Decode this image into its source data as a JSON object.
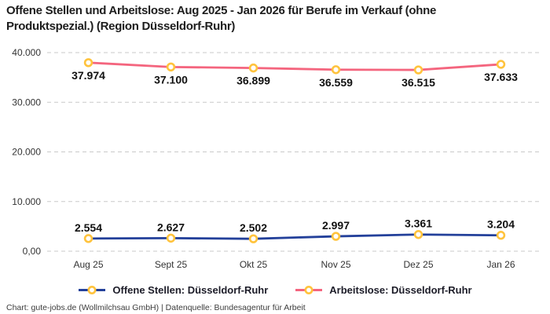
{
  "title": "Offene Stellen und Arbeitslose: Aug 2025 - Jan 2026 für Berufe im Verkauf (ohne Produktspezial.) (Region Düsseldorf-Ruhr)",
  "footer": "Chart: gute-jobs.de (Wollmilchsau GmbH) | Datenquelle: Bundesagentur für Arbeit",
  "colors": {
    "open_positions_line": "#23409a",
    "unemployed_line": "#f4657e",
    "marker_ring": "#ffc33d",
    "marker_fill": "#ffffff",
    "gridline": "#c9c9c9",
    "title_text": "#1d1d1d",
    "background": "#ffffff"
  },
  "chart_data": {
    "type": "line",
    "title": "Offene Stellen und Arbeitslose: Aug 2025 - Jan 2026 für Berufe im Verkauf (ohne Produktspezial.) (Region Düsseldorf-Ruhr)",
    "categories": [
      "Aug 25",
      "Sept 25",
      "Okt 25",
      "Nov 25",
      "Dez 25",
      "Jan 26"
    ],
    "series": [
      {
        "name": "Offene Stellen: Düsseldorf-Ruhr",
        "values": [
          2554,
          2627,
          2502,
          2997,
          3361,
          3204
        ],
        "value_labels": [
          "2.554",
          "2.627",
          "2.502",
          "2.997",
          "3.361",
          "3.204"
        ],
        "color": "#23409a",
        "label_position": "above"
      },
      {
        "name": "Arbeitslose: Düsseldorf-Ruhr",
        "values": [
          37974,
          37100,
          36899,
          36559,
          36515,
          37633
        ],
        "value_labels": [
          "37.974",
          "37.100",
          "36.899",
          "36.559",
          "36.515",
          "37.633"
        ],
        "color": "#f4657e",
        "label_position": "below"
      }
    ],
    "y_ticks": [
      {
        "value": 0,
        "label": "0,00"
      },
      {
        "value": 10000,
        "label": "10.000"
      },
      {
        "value": 20000,
        "label": "20.000"
      },
      {
        "value": 30000,
        "label": "30.000"
      },
      {
        "value": 40000,
        "label": "40.000"
      }
    ],
    "ylim": [
      0,
      40000
    ],
    "xlabel": "",
    "ylabel": "",
    "grid": "horizontal-dashed",
    "legend_position": "bottom",
    "marker": "circle-ring-yellow"
  }
}
